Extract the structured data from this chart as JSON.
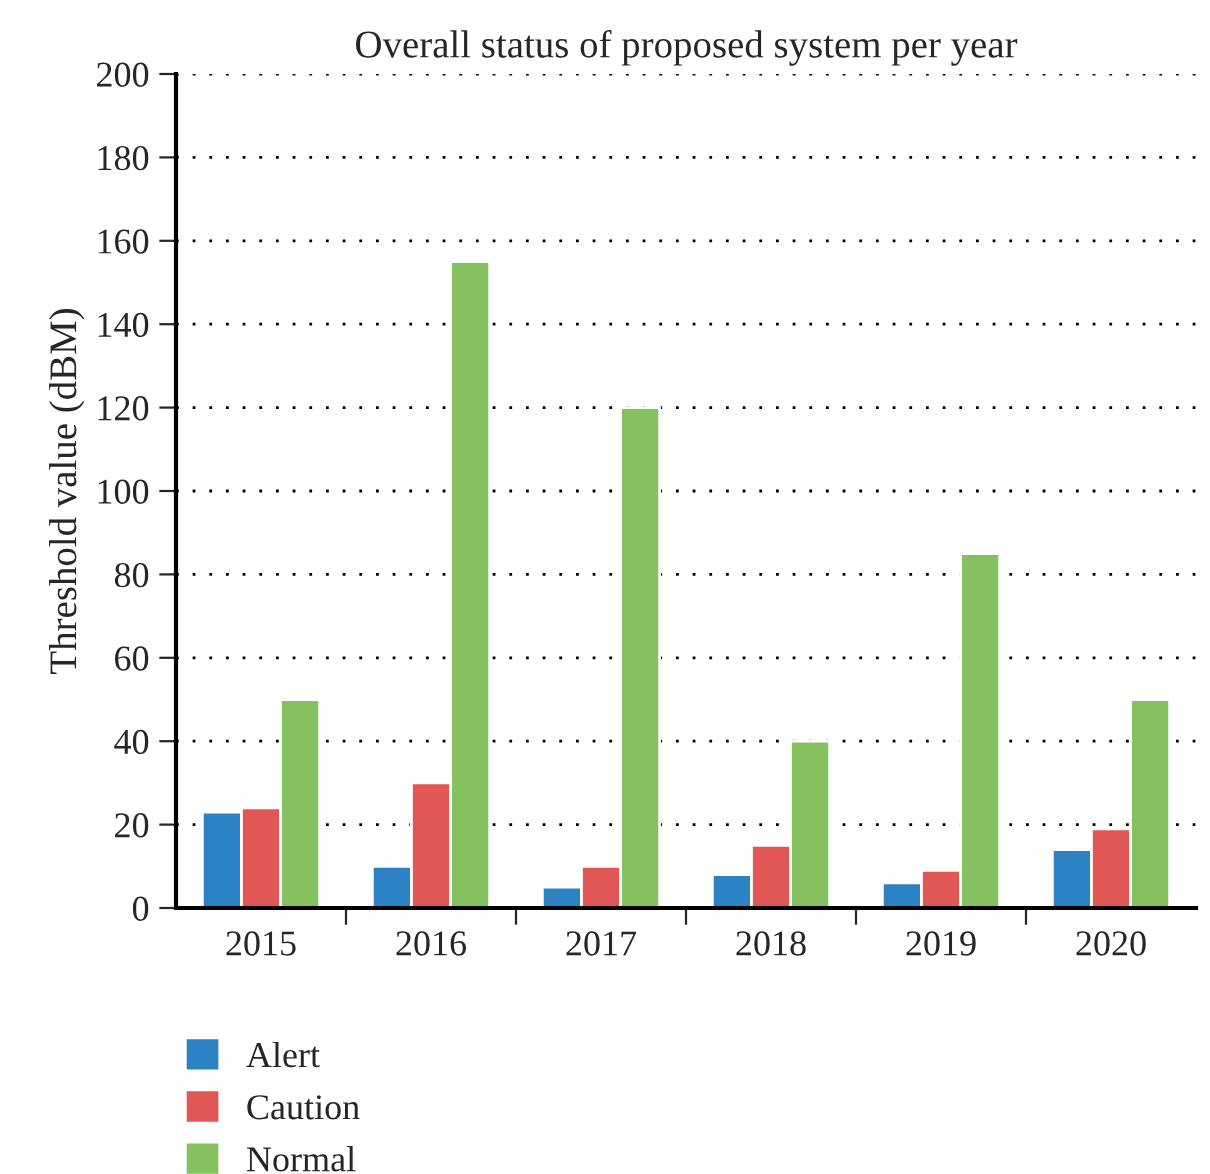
{
  "chart_data": {
    "type": "bar",
    "title": "Overall status of proposed system per year",
    "ylabel": "Threshold value (dBM)",
    "categories": [
      "2015",
      "2016",
      "2017",
      "2018",
      "2019",
      "2020"
    ],
    "series": [
      {
        "name": "Alert",
        "color": "#2b83c3",
        "values": [
          23,
          10,
          5,
          8,
          6,
          14
        ]
      },
      {
        "name": "Caution",
        "color": "#e05756",
        "values": [
          24,
          30,
          10,
          15,
          9,
          19
        ]
      },
      {
        "name": "Normal",
        "color": "#86c160",
        "values": [
          50,
          155,
          120,
          40,
          85,
          50
        ]
      }
    ],
    "ylim": [
      0,
      200
    ],
    "yticks": [
      0,
      20,
      40,
      60,
      80,
      100,
      120,
      140,
      160,
      180,
      200
    ],
    "grid": "y",
    "legend": "bottom"
  }
}
